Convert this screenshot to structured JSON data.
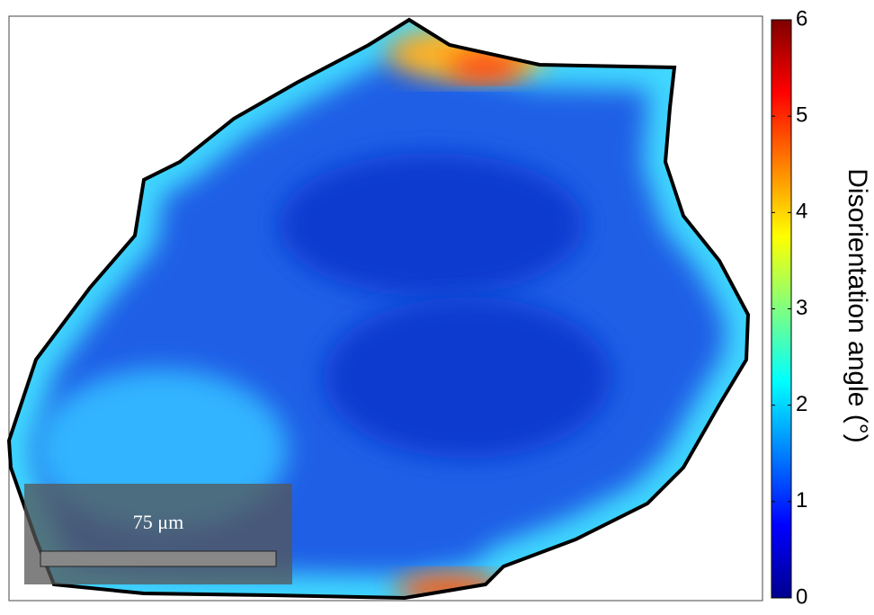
{
  "chart_data": {
    "type": "colormap",
    "colorbar_label": "Disorientation angle (°)",
    "clim": [
      0,
      6
    ],
    "cticks": [
      0,
      1,
      2,
      3,
      4,
      5,
      6
    ],
    "scale_bar": "75 μm"
  }
}
